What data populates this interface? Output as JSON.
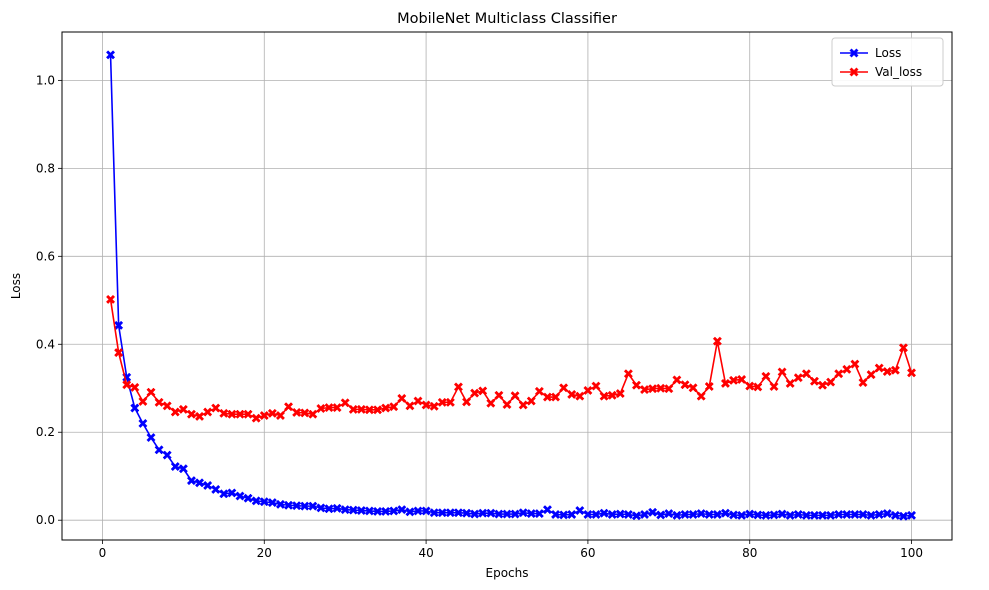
{
  "chart_data": {
    "type": "line",
    "title": "MobileNet Multiclass Classifier",
    "xlabel": "Epochs",
    "ylabel": "Loss",
    "xlim": [
      -5,
      105
    ],
    "ylim": [
      -0.045,
      1.11
    ],
    "xticks": [
      0,
      20,
      40,
      60,
      80,
      100
    ],
    "yticks": [
      0.0,
      0.2,
      0.4,
      0.6,
      0.8,
      1.0
    ],
    "xtick_labels": [
      "0",
      "20",
      "40",
      "60",
      "80",
      "100"
    ],
    "ytick_labels": [
      "0.0",
      "0.2",
      "0.4",
      "0.6",
      "0.8",
      "1.0"
    ],
    "grid": true,
    "legend_position": "top-right",
    "marker": "X",
    "x": [
      1,
      2,
      3,
      4,
      5,
      6,
      7,
      8,
      9,
      10,
      11,
      12,
      13,
      14,
      15,
      16,
      17,
      18,
      19,
      20,
      21,
      22,
      23,
      24,
      25,
      26,
      27,
      28,
      29,
      30,
      31,
      32,
      33,
      34,
      35,
      36,
      37,
      38,
      39,
      40,
      41,
      42,
      43,
      44,
      45,
      46,
      47,
      48,
      49,
      50,
      51,
      52,
      53,
      54,
      55,
      56,
      57,
      58,
      59,
      60,
      61,
      62,
      63,
      64,
      65,
      66,
      67,
      68,
      69,
      70,
      71,
      72,
      73,
      74,
      75,
      76,
      77,
      78,
      79,
      80,
      81,
      82,
      83,
      84,
      85,
      86,
      87,
      88,
      89,
      90,
      91,
      92,
      93,
      94,
      95,
      96,
      97,
      98,
      99,
      100
    ],
    "series": [
      {
        "name": "Loss",
        "color": "#0000ff",
        "values": [
          1.058,
          0.443,
          0.325,
          0.255,
          0.22,
          0.188,
          0.16,
          0.148,
          0.122,
          0.117,
          0.09,
          0.085,
          0.079,
          0.07,
          0.06,
          0.062,
          0.055,
          0.05,
          0.044,
          0.042,
          0.04,
          0.036,
          0.034,
          0.033,
          0.032,
          0.032,
          0.028,
          0.026,
          0.027,
          0.024,
          0.023,
          0.022,
          0.021,
          0.02,
          0.02,
          0.021,
          0.024,
          0.019,
          0.021,
          0.021,
          0.017,
          0.017,
          0.017,
          0.017,
          0.016,
          0.014,
          0.016,
          0.016,
          0.014,
          0.014,
          0.014,
          0.017,
          0.015,
          0.015,
          0.024,
          0.013,
          0.012,
          0.013,
          0.022,
          0.013,
          0.013,
          0.016,
          0.013,
          0.014,
          0.013,
          0.01,
          0.013,
          0.018,
          0.012,
          0.015,
          0.011,
          0.013,
          0.013,
          0.015,
          0.013,
          0.013,
          0.016,
          0.012,
          0.011,
          0.014,
          0.012,
          0.011,
          0.012,
          0.014,
          0.011,
          0.013,
          0.011,
          0.011,
          0.011,
          0.011,
          0.013,
          0.013,
          0.013,
          0.013,
          0.011,
          0.013,
          0.015,
          0.011,
          0.009,
          0.011
        ]
      },
      {
        "name": "Val_loss",
        "color": "#ff0000",
        "values": [
          0.502,
          0.381,
          0.308,
          0.302,
          0.27,
          0.291,
          0.268,
          0.26,
          0.246,
          0.252,
          0.241,
          0.236,
          0.246,
          0.255,
          0.243,
          0.241,
          0.241,
          0.241,
          0.232,
          0.238,
          0.243,
          0.238,
          0.258,
          0.245,
          0.244,
          0.241,
          0.254,
          0.256,
          0.256,
          0.267,
          0.252,
          0.252,
          0.251,
          0.251,
          0.255,
          0.258,
          0.277,
          0.26,
          0.271,
          0.262,
          0.259,
          0.268,
          0.268,
          0.303,
          0.269,
          0.289,
          0.294,
          0.266,
          0.284,
          0.263,
          0.283,
          0.262,
          0.271,
          0.293,
          0.28,
          0.28,
          0.301,
          0.286,
          0.282,
          0.295,
          0.305,
          0.282,
          0.284,
          0.288,
          0.333,
          0.307,
          0.297,
          0.299,
          0.3,
          0.299,
          0.319,
          0.308,
          0.301,
          0.282,
          0.304,
          0.407,
          0.311,
          0.318,
          0.32,
          0.305,
          0.303,
          0.327,
          0.304,
          0.337,
          0.311,
          0.324,
          0.333,
          0.316,
          0.307,
          0.314,
          0.333,
          0.343,
          0.355,
          0.313,
          0.331,
          0.346,
          0.338,
          0.341,
          0.392,
          0.335
        ]
      }
    ]
  }
}
